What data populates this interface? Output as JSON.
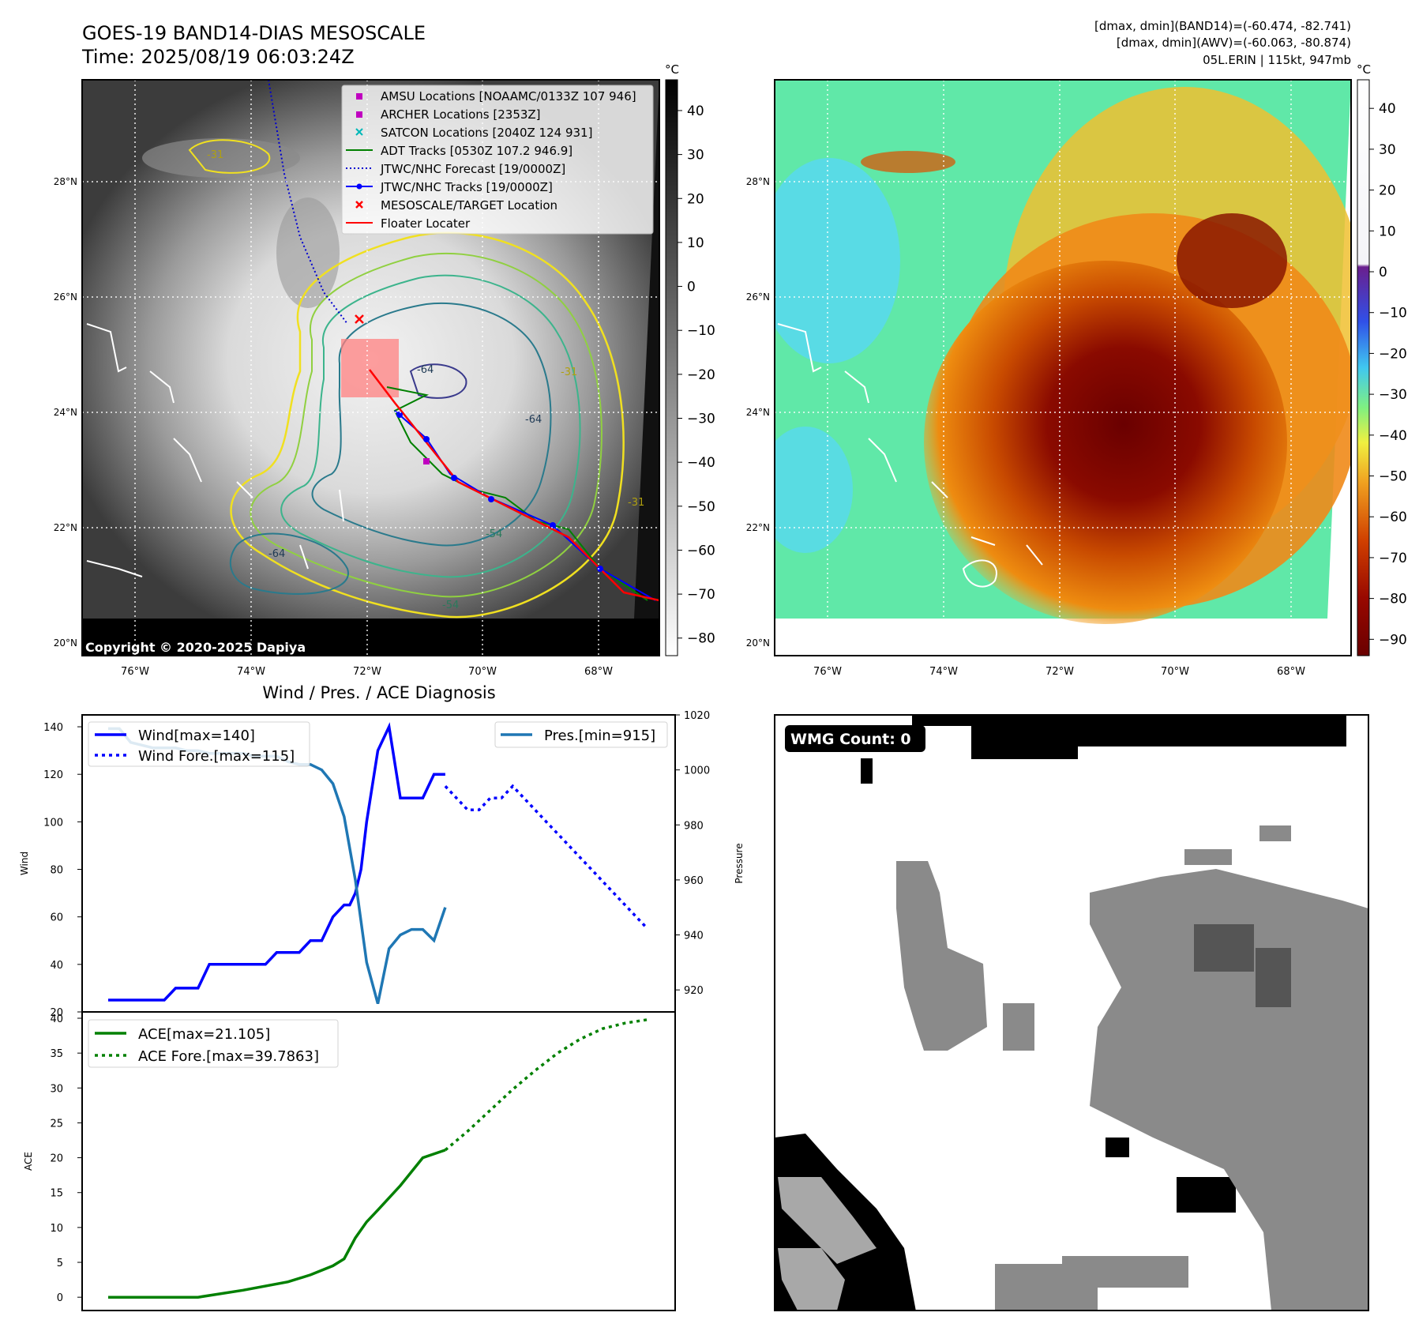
{
  "header": {
    "title_line1": "GOES-19 BAND14-DIAS MESOSCALE",
    "title_line2": "Time: 2025/08/19 06:03:24Z",
    "info_line1": "[dmax, dmin](BAND14)=(-60.474, -82.741)",
    "info_line2": "[dmax, dmin](AWV)=(-60.063, -80.874)",
    "info_line3": "05L.ERIN | 115kt, 947mb"
  },
  "maps": {
    "lat_labels": [
      "28°N",
      "26°N",
      "24°N",
      "22°N",
      "20°N"
    ],
    "lon_labels": [
      "76°W",
      "74°W",
      "72°W",
      "70°W",
      "68°W"
    ],
    "copyright": "Copyright © 2020-2025 Dapiya",
    "contour_labels": [
      "-64",
      "-64",
      "-64",
      "-54",
      "-54",
      "-31",
      "-31",
      "-31"
    ],
    "legend": [
      {
        "label": "AMSU Locations [NOAAMC/0133Z 107 946]",
        "kind": "square",
        "color": "#c000c0"
      },
      {
        "label": "ARCHER Locations [2353Z]",
        "kind": "square",
        "color": "#c000c0"
      },
      {
        "label": "SATCON Locations [2040Z 124 931]",
        "kind": "x",
        "color": "#00b8b8"
      },
      {
        "label": "ADT Tracks [0530Z 107.2 946.9]",
        "kind": "line",
        "color": "#008000"
      },
      {
        "label": "JTWC/NHC Forecast [19/0000Z]",
        "kind": "dotted",
        "color": "#0000d0"
      },
      {
        "label": "JTWC/NHC Tracks [19/0000Z]",
        "kind": "dotline",
        "color": "#0000ff"
      },
      {
        "label": "MESOSCALE/TARGET Location",
        "kind": "x",
        "color": "#ff0000"
      },
      {
        "label": "Floater Locater",
        "kind": "line",
        "color": "#ff0000"
      }
    ],
    "left_colorbar": {
      "unit": "°C",
      "ticks": [
        "40",
        "30",
        "20",
        "10",
        "0",
        "−10",
        "−20",
        "−30",
        "−40",
        "−50",
        "−60",
        "−70",
        "−80"
      ]
    },
    "right_colorbar": {
      "unit": "°C",
      "ticks": [
        "40",
        "30",
        "20",
        "10",
        "0",
        "−10",
        "−20",
        "−30",
        "−40",
        "−50",
        "−60",
        "−70",
        "−80",
        "−90"
      ]
    }
  },
  "panel3": {
    "title": "Wind / Pres. / ACE Diagnosis"
  },
  "wmg": {
    "label": "WMG Count: 0"
  },
  "chart_data": [
    {
      "type": "line",
      "title": "Wind / Pres. / ACE Diagnosis",
      "ylabel": "Wind",
      "ylabel_right": "Pressure",
      "ylim": [
        20,
        145
      ],
      "ylim_right": [
        912,
        1020
      ],
      "yticks": [
        20,
        40,
        60,
        80,
        100,
        120,
        140
      ],
      "yticks_right": [
        920,
        940,
        960,
        980,
        1000,
        1020
      ],
      "series": [
        {
          "name": "Wind[max=140]",
          "color": "#0000ff",
          "style": "solid",
          "x": [
            0,
            1,
            2,
            3,
            4,
            5,
            6,
            7,
            8,
            9,
            10,
            11,
            12,
            13,
            14,
            15,
            16,
            17,
            18,
            19,
            20,
            21,
            21.5,
            22,
            22.5,
            23,
            24,
            25,
            26,
            27,
            28,
            29,
            30
          ],
          "values": [
            25,
            25,
            25,
            25,
            25,
            25,
            30,
            30,
            30,
            40,
            40,
            40,
            40,
            40,
            40,
            45,
            45,
            45,
            50,
            50,
            60,
            65,
            65,
            70,
            80,
            100,
            130,
            140,
            110,
            110,
            110,
            120,
            120
          ]
        },
        {
          "name": "Wind Fore.[max=115]",
          "color": "#0000ff",
          "style": "dotted",
          "x": [
            30,
            31,
            32,
            33,
            34,
            35,
            36,
            37,
            38,
            39,
            40,
            41,
            42,
            43,
            44,
            45,
            46,
            47,
            48
          ],
          "values": [
            115,
            110,
            105,
            105,
            110,
            110,
            115,
            110,
            105,
            100,
            95,
            90,
            85,
            80,
            75,
            70,
            65,
            60,
            55
          ]
        },
        {
          "name": "Pres.[min=915]",
          "color": "#1f77b4",
          "style": "solid",
          "axis": "right",
          "x": [
            0,
            1,
            2,
            3,
            4,
            5,
            6,
            7,
            8,
            9,
            10,
            11,
            12,
            13,
            14,
            15,
            16,
            17,
            18,
            19,
            20,
            21,
            22,
            23,
            24,
            25,
            26,
            27,
            28,
            29,
            30
          ],
          "values": [
            1015,
            1015,
            1010,
            1009,
            1008,
            1008,
            1008,
            1007,
            1007,
            1006,
            1006,
            1006,
            1006,
            1005,
            1005,
            1005,
            1003,
            1002,
            1002,
            1000,
            995,
            983,
            960,
            930,
            915,
            935,
            940,
            942,
            942,
            938,
            950
          ]
        }
      ]
    },
    {
      "type": "line",
      "ylabel": "ACE",
      "ylim": [
        -1,
        40
      ],
      "yticks": [
        0,
        5,
        10,
        15,
        20,
        25,
        30,
        35,
        40
      ],
      "series": [
        {
          "name": "ACE[max=21.105]",
          "color": "#008000",
          "style": "solid",
          "x": [
            0,
            4,
            8,
            12,
            16,
            18,
            20,
            21,
            22,
            23,
            24,
            26,
            28,
            30
          ],
          "values": [
            0,
            0,
            0,
            1.0,
            2.2,
            3.2,
            4.5,
            5.5,
            8.5,
            10.8,
            12.5,
            16.0,
            20.0,
            21.1
          ]
        },
        {
          "name": "ACE Fore.[max=39.7863]",
          "color": "#008000",
          "style": "dotted",
          "x": [
            30,
            32,
            34,
            36,
            38,
            40,
            42,
            44,
            46,
            48
          ],
          "values": [
            21.1,
            23.8,
            26.8,
            29.8,
            32.5,
            35.0,
            37.0,
            38.5,
            39.3,
            39.8
          ]
        }
      ]
    }
  ]
}
